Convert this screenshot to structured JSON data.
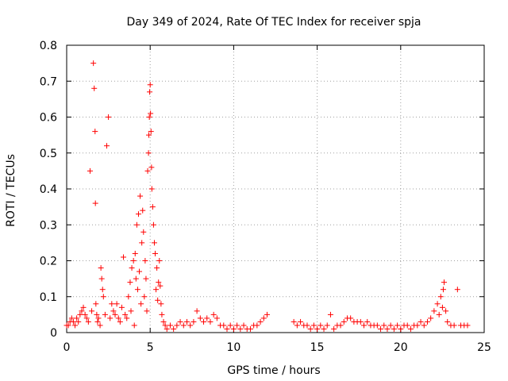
{
  "chart_data": {
    "type": "scatter",
    "title": "Day 349 of 2024, Rate Of TEC Index for receiver spja",
    "xlabel": "GPS time / hours",
    "ylabel": "ROTI / TECUs",
    "xlim": [
      0,
      25
    ],
    "ylim": [
      0,
      0.8
    ],
    "xticks": [
      0,
      5,
      10,
      15,
      20,
      25
    ],
    "xtick_labels": [
      "0",
      "5",
      "10",
      "15",
      "20",
      "25"
    ],
    "yticks": [
      0,
      0.1,
      0.2,
      0.3,
      0.4,
      0.5,
      0.6,
      0.7,
      0.8
    ],
    "ytick_labels": [
      "0",
      "0.1",
      "0.2",
      "0.3",
      "0.4",
      "0.5",
      "0.6",
      "0.7",
      "0.8"
    ],
    "grid": true,
    "marker": "+",
    "color": "#ff0000",
    "series": [
      {
        "name": "ROTI",
        "points": [
          [
            0.0,
            0.02
          ],
          [
            0.1,
            0.02
          ],
          [
            0.2,
            0.03
          ],
          [
            0.3,
            0.04
          ],
          [
            0.4,
            0.03
          ],
          [
            0.5,
            0.02
          ],
          [
            0.6,
            0.04
          ],
          [
            0.7,
            0.03
          ],
          [
            0.8,
            0.05
          ],
          [
            0.9,
            0.06
          ],
          [
            1.0,
            0.07
          ],
          [
            1.1,
            0.05
          ],
          [
            1.2,
            0.04
          ],
          [
            1.3,
            0.03
          ],
          [
            1.4,
            0.45
          ],
          [
            1.5,
            0.06
          ],
          [
            1.6,
            0.75
          ],
          [
            1.65,
            0.68
          ],
          [
            1.7,
            0.56
          ],
          [
            1.72,
            0.36
          ],
          [
            1.75,
            0.08
          ],
          [
            1.8,
            0.05
          ],
          [
            1.85,
            0.03
          ],
          [
            1.9,
            0.04
          ],
          [
            2.0,
            0.02
          ],
          [
            2.05,
            0.18
          ],
          [
            2.1,
            0.15
          ],
          [
            2.15,
            0.12
          ],
          [
            2.2,
            0.1
          ],
          [
            2.3,
            0.05
          ],
          [
            2.4,
            0.52
          ],
          [
            2.5,
            0.6
          ],
          [
            2.6,
            0.04
          ],
          [
            2.7,
            0.08
          ],
          [
            2.8,
            0.06
          ],
          [
            2.9,
            0.05
          ],
          [
            3.0,
            0.08
          ],
          [
            3.1,
            0.04
          ],
          [
            3.2,
            0.03
          ],
          [
            3.3,
            0.07
          ],
          [
            3.4,
            0.21
          ],
          [
            3.5,
            0.05
          ],
          [
            3.6,
            0.04
          ],
          [
            3.7,
            0.1
          ],
          [
            3.8,
            0.14
          ],
          [
            3.85,
            0.06
          ],
          [
            3.9,
            0.18
          ],
          [
            4.0,
            0.2
          ],
          [
            4.05,
            0.02
          ],
          [
            4.1,
            0.22
          ],
          [
            4.15,
            0.15
          ],
          [
            4.2,
            0.3
          ],
          [
            4.25,
            0.12
          ],
          [
            4.3,
            0.33
          ],
          [
            4.35,
            0.17
          ],
          [
            4.4,
            0.38
          ],
          [
            4.45,
            0.08
          ],
          [
            4.5,
            0.25
          ],
          [
            4.55,
            0.34
          ],
          [
            4.6,
            0.28
          ],
          [
            4.65,
            0.1
          ],
          [
            4.7,
            0.2
          ],
          [
            4.75,
            0.15
          ],
          [
            4.8,
            0.06
          ],
          [
            4.85,
            0.45
          ],
          [
            4.9,
            0.5
          ],
          [
            4.92,
            0.55
          ],
          [
            4.95,
            0.6
          ],
          [
            4.97,
            0.67
          ],
          [
            5.0,
            0.69
          ],
          [
            5.02,
            0.61
          ],
          [
            5.05,
            0.56
          ],
          [
            5.08,
            0.46
          ],
          [
            5.1,
            0.4
          ],
          [
            5.15,
            0.35
          ],
          [
            5.2,
            0.3
          ],
          [
            5.25,
            0.25
          ],
          [
            5.3,
            0.22
          ],
          [
            5.35,
            0.12
          ],
          [
            5.4,
            0.18
          ],
          [
            5.45,
            0.09
          ],
          [
            5.5,
            0.14
          ],
          [
            5.55,
            0.2
          ],
          [
            5.6,
            0.13
          ],
          [
            5.65,
            0.08
          ],
          [
            5.7,
            0.05
          ],
          [
            5.8,
            0.03
          ],
          [
            5.9,
            0.02
          ],
          [
            6.0,
            0.01
          ],
          [
            6.2,
            0.02
          ],
          [
            6.4,
            0.01
          ],
          [
            6.6,
            0.02
          ],
          [
            6.8,
            0.03
          ],
          [
            7.0,
            0.02
          ],
          [
            7.2,
            0.03
          ],
          [
            7.4,
            0.02
          ],
          [
            7.6,
            0.03
          ],
          [
            7.8,
            0.06
          ],
          [
            8.0,
            0.04
          ],
          [
            8.2,
            0.03
          ],
          [
            8.4,
            0.04
          ],
          [
            8.6,
            0.03
          ],
          [
            8.8,
            0.05
          ],
          [
            9.0,
            0.04
          ],
          [
            9.2,
            0.02
          ],
          [
            9.4,
            0.02
          ],
          [
            9.6,
            0.01
          ],
          [
            9.8,
            0.02
          ],
          [
            10.0,
            0.01
          ],
          [
            10.2,
            0.02
          ],
          [
            10.4,
            0.01
          ],
          [
            10.6,
            0.02
          ],
          [
            10.8,
            0.01
          ],
          [
            11.0,
            0.01
          ],
          [
            11.2,
            0.02
          ],
          [
            11.4,
            0.02
          ],
          [
            11.6,
            0.03
          ],
          [
            11.8,
            0.04
          ],
          [
            12.0,
            0.05
          ],
          [
            13.6,
            0.03
          ],
          [
            13.8,
            0.02
          ],
          [
            14.0,
            0.03
          ],
          [
            14.2,
            0.02
          ],
          [
            14.4,
            0.02
          ],
          [
            14.6,
            0.01
          ],
          [
            14.8,
            0.02
          ],
          [
            15.0,
            0.01
          ],
          [
            15.2,
            0.02
          ],
          [
            15.4,
            0.01
          ],
          [
            15.6,
            0.02
          ],
          [
            15.8,
            0.05
          ],
          [
            16.0,
            0.01
          ],
          [
            16.2,
            0.02
          ],
          [
            16.4,
            0.02
          ],
          [
            16.6,
            0.03
          ],
          [
            16.8,
            0.04
          ],
          [
            17.0,
            0.04
          ],
          [
            17.2,
            0.03
          ],
          [
            17.4,
            0.03
          ],
          [
            17.6,
            0.03
          ],
          [
            17.8,
            0.02
          ],
          [
            18.0,
            0.03
          ],
          [
            18.2,
            0.02
          ],
          [
            18.4,
            0.02
          ],
          [
            18.6,
            0.02
          ],
          [
            18.8,
            0.01
          ],
          [
            19.0,
            0.02
          ],
          [
            19.2,
            0.01
          ],
          [
            19.4,
            0.02
          ],
          [
            19.6,
            0.01
          ],
          [
            19.8,
            0.02
          ],
          [
            20.0,
            0.01
          ],
          [
            20.2,
            0.02
          ],
          [
            20.4,
            0.02
          ],
          [
            20.6,
            0.01
          ],
          [
            20.8,
            0.02
          ],
          [
            21.0,
            0.02
          ],
          [
            21.2,
            0.03
          ],
          [
            21.4,
            0.02
          ],
          [
            21.6,
            0.03
          ],
          [
            21.8,
            0.04
          ],
          [
            22.0,
            0.06
          ],
          [
            22.2,
            0.08
          ],
          [
            22.3,
            0.05
          ],
          [
            22.4,
            0.1
          ],
          [
            22.5,
            0.07
          ],
          [
            22.55,
            0.12
          ],
          [
            22.6,
            0.14
          ],
          [
            22.7,
            0.06
          ],
          [
            22.8,
            0.03
          ],
          [
            23.0,
            0.02
          ],
          [
            23.2,
            0.02
          ],
          [
            23.4,
            0.12
          ],
          [
            23.6,
            0.02
          ],
          [
            23.8,
            0.02
          ],
          [
            24.0,
            0.02
          ]
        ]
      }
    ]
  }
}
